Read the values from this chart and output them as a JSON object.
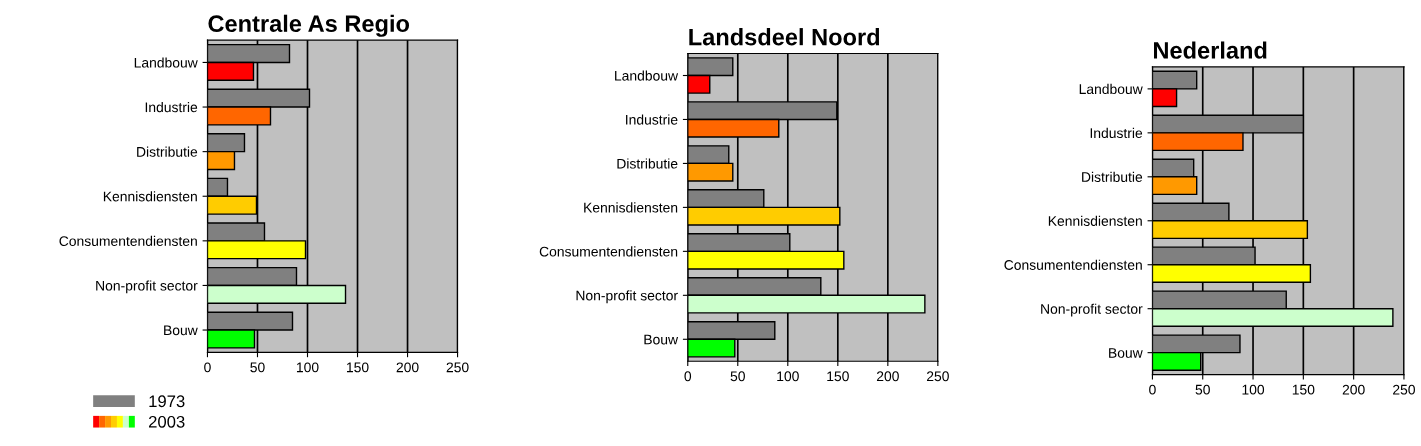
{
  "chart_data": [
    {
      "type": "bar",
      "orientation": "horizontal",
      "title": "Centrale As Regio",
      "categories": [
        "Landbouw",
        "Industrie",
        "Distributie",
        "Kennisdiensten",
        "Consumentendiensten",
        "Non-profit sector",
        "Bouw"
      ],
      "series": [
        {
          "name": "1973",
          "color": "#808080",
          "values": [
            82,
            102,
            37,
            20,
            57,
            89,
            85
          ]
        },
        {
          "name": "2003",
          "colors": [
            "#ff0000",
            "#ff6600",
            "#ff9900",
            "#ffcc00",
            "#ffff00",
            "#ccffcc",
            "#00ff00"
          ],
          "values": [
            46,
            63,
            27,
            49,
            98,
            138,
            47
          ]
        }
      ],
      "xlim": [
        0,
        250
      ],
      "xticks": [
        0,
        50,
        100,
        150,
        200,
        250
      ],
      "grid": "x",
      "legend": "bottom left"
    },
    {
      "type": "bar",
      "orientation": "horizontal",
      "title": "Landsdeel Noord",
      "categories": [
        "Landbouw",
        "Industrie",
        "Distributie",
        "Kennisdiensten",
        "Consumentendiensten",
        "Non-profit sector",
        "Bouw"
      ],
      "series": [
        {
          "color": "#808080",
          "values": [
            45,
            149,
            41,
            76,
            102,
            133,
            87
          ]
        },
        {
          "colors": [
            "#ff0000",
            "#ff6600",
            "#ff9900",
            "#ffcc00",
            "#ffff00",
            "#ccffcc",
            "#00ff00"
          ],
          "values": [
            22,
            91,
            45,
            152,
            156,
            237,
            47
          ]
        }
      ],
      "xlim": [
        0,
        250
      ],
      "xticks": [
        0,
        50,
        100,
        150,
        200,
        250
      ],
      "grid": "x"
    },
    {
      "type": "bar",
      "orientation": "horizontal",
      "title": "Nederland",
      "categories": [
        "Landbouw",
        "Industrie",
        "Distributie",
        "Kennisdiensten",
        "Consumentendiensten",
        "Non-profit sector",
        "Bouw"
      ],
      "series": [
        {
          "color": "#808080",
          "values": [
            44,
            150,
            41,
            76,
            102,
            133,
            87
          ]
        },
        {
          "colors": [
            "#ff0000",
            "#ff6600",
            "#ff9900",
            "#ffcc00",
            "#ffff00",
            "#ccffcc",
            "#00ff00"
          ],
          "values": [
            24,
            90,
            44,
            154,
            157,
            239,
            48
          ]
        }
      ],
      "xlim": [
        0,
        250
      ],
      "xticks": [
        0,
        50,
        100,
        150,
        200,
        250
      ],
      "grid": "x"
    }
  ]
}
